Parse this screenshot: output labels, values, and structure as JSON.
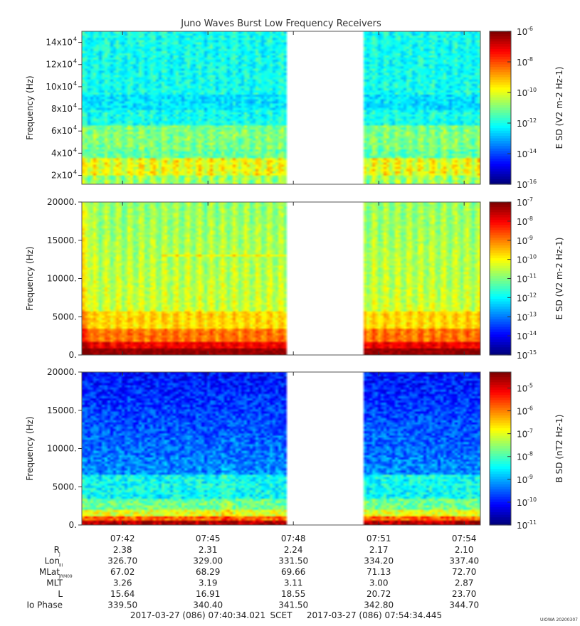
{
  "title": "Juno Waves Burst Low Frequency Receivers",
  "chart_data": [
    {
      "type": "heatmap",
      "ylabel": "Frequency (Hz)",
      "ylim": [
        12000,
        150000
      ],
      "yticks": [
        {
          "value": 20000,
          "base": "2x10",
          "exp": "4"
        },
        {
          "value": 40000,
          "base": "4x10",
          "exp": "4"
        },
        {
          "value": 60000,
          "base": "6x10",
          "exp": "4"
        },
        {
          "value": 80000,
          "base": "8x10",
          "exp": "4"
        },
        {
          "value": 100000,
          "base": "10x10",
          "exp": "4"
        },
        {
          "value": 120000,
          "base": "12x10",
          "exp": "4"
        },
        {
          "value": 140000,
          "base": "14x10",
          "exp": "4"
        }
      ],
      "colorbar": {
        "label": "E SD (V2 m-2 Hz-1)",
        "scale": "log",
        "range_exp": [
          -16,
          -6
        ],
        "ticks": [
          "-6",
          "-8",
          "-10",
          "-12",
          "-14",
          "-16"
        ]
      },
      "style": "hf",
      "data_gap_minutes": [
        7.25,
        9.95
      ]
    },
    {
      "type": "heatmap",
      "ylabel": "Frequency (Hz)",
      "ylim": [
        0,
        20000
      ],
      "yticks": [
        {
          "value": 0,
          "label": "0."
        },
        {
          "value": 5000,
          "label": "5000."
        },
        {
          "value": 10000,
          "label": "10000."
        },
        {
          "value": 15000,
          "label": "15000."
        },
        {
          "value": 20000,
          "label": "20000."
        }
      ],
      "colorbar": {
        "label": "E SD (V2 m-2 Hz-1)",
        "scale": "log",
        "range_exp": [
          -15,
          -7
        ],
        "ticks": [
          "-7",
          "-8",
          "-9",
          "-10",
          "-11",
          "-12",
          "-13",
          "-14",
          "-15"
        ]
      },
      "style": "lfe",
      "data_gap_minutes": [
        7.25,
        9.95
      ]
    },
    {
      "type": "heatmap",
      "ylabel": "Frequency (Hz)",
      "ylim": [
        0,
        20000
      ],
      "yticks": [
        {
          "value": 0,
          "label": "0."
        },
        {
          "value": 5000,
          "label": "5000."
        },
        {
          "value": 10000,
          "label": "10000."
        },
        {
          "value": 15000,
          "label": "15000."
        },
        {
          "value": 20000,
          "label": "20000."
        }
      ],
      "colorbar": {
        "label": "B SD (nT2 Hz-1)",
        "scale": "log",
        "range_exp": [
          -11,
          -4.3
        ],
        "ticks": [
          "-5",
          "-6",
          "-7",
          "-8",
          "-9",
          "-10",
          "-11"
        ]
      },
      "style": "lfb",
      "data_gap_minutes": [
        7.25,
        9.95
      ]
    }
  ],
  "time_axis": {
    "start_minute": 0,
    "end_minute": 14.0,
    "ticks": [
      {
        "minute": 1.43,
        "label": "07:42"
      },
      {
        "minute": 4.43,
        "label": "07:45"
      },
      {
        "minute": 7.43,
        "label": "07:48"
      },
      {
        "minute": 10.43,
        "label": "07:51"
      },
      {
        "minute": 13.43,
        "label": "07:54"
      }
    ]
  },
  "ephemeris": {
    "rows": [
      {
        "label": "R",
        "sub": "J",
        "values": [
          "2.38",
          "2.31",
          "2.24",
          "2.17",
          "2.10"
        ]
      },
      {
        "label": "Lon",
        "sub": "III",
        "values": [
          "326.70",
          "329.00",
          "331.50",
          "334.20",
          "337.40"
        ]
      },
      {
        "label": "MLat",
        "sub": "JRM09",
        "values": [
          "67.02",
          "68.29",
          "69.66",
          "71.13",
          "72.70"
        ]
      },
      {
        "label": "MLT",
        "sub": "",
        "values": [
          "3.26",
          "3.19",
          "3.11",
          "3.00",
          "2.87"
        ]
      },
      {
        "label": "L",
        "sub": "",
        "values": [
          "15.64",
          "16.91",
          "18.55",
          "20.72",
          "23.70"
        ]
      },
      {
        "label": "Io Phase",
        "sub": "",
        "values": [
          "339.50",
          "340.40",
          "341.50",
          "342.80",
          "344.70"
        ]
      }
    ]
  },
  "footer": {
    "start": "2017-03-27 (086) 07:40:34.021",
    "scet": "SCET",
    "end": "2017-03-27 (086) 07:54:34.445",
    "stamp": "UIOWA 20200307"
  }
}
